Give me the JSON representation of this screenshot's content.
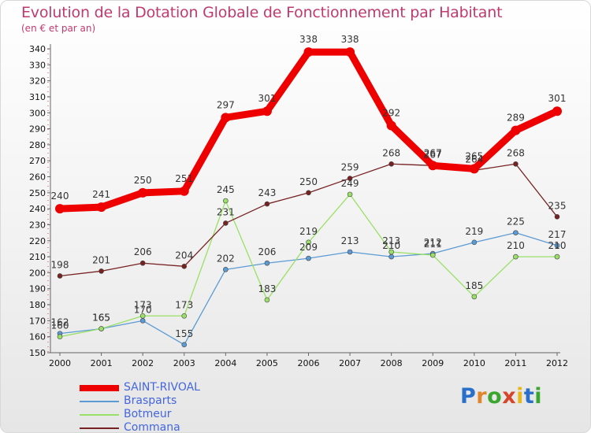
{
  "title": "Evolution de la Dotation Globale de Fonctionnement par Habitant",
  "subtitle": "(en € et par an)",
  "brand": "Proxiti",
  "chart_data": {
    "type": "line",
    "title": "Evolution de la Dotation Globale de Fonctionnement par Habitant",
    "subtitle": "(en € et par an)",
    "xlabel": "",
    "ylabel": "",
    "x": [
      "2000",
      "2001",
      "2002",
      "2003",
      "2004",
      "2005",
      "2006",
      "2007",
      "2008",
      "2009",
      "2010",
      "2011",
      "2012"
    ],
    "ylim": [
      150,
      340
    ],
    "yticks": [
      150,
      160,
      170,
      180,
      190,
      200,
      210,
      220,
      230,
      240,
      250,
      260,
      270,
      280,
      290,
      300,
      310,
      320,
      330,
      340
    ],
    "grid": false,
    "legend_position": "bottom-left",
    "series": [
      {
        "name": "SAINT-RIVOAL",
        "color": "#ee0000",
        "values": [
          240,
          241,
          250,
          251,
          297,
          301,
          338,
          338,
          292,
          267,
          265,
          289,
          301
        ]
      },
      {
        "name": "Brasparts",
        "color": "#5b9bd5",
        "values": [
          162,
          165,
          170,
          155,
          202,
          206,
          209,
          213,
          210,
          212,
          219,
          225,
          217
        ]
      },
      {
        "name": "Botmeur",
        "color": "#99e066",
        "values": [
          160,
          165,
          173,
          173,
          245,
          183,
          219,
          249,
          213,
          211,
          185,
          210,
          210
        ]
      },
      {
        "name": "Commana",
        "color": "#772222",
        "values": [
          198,
          201,
          206,
          204,
          231,
          243,
          250,
          259,
          268,
          267,
          264,
          268,
          235
        ]
      }
    ]
  }
}
